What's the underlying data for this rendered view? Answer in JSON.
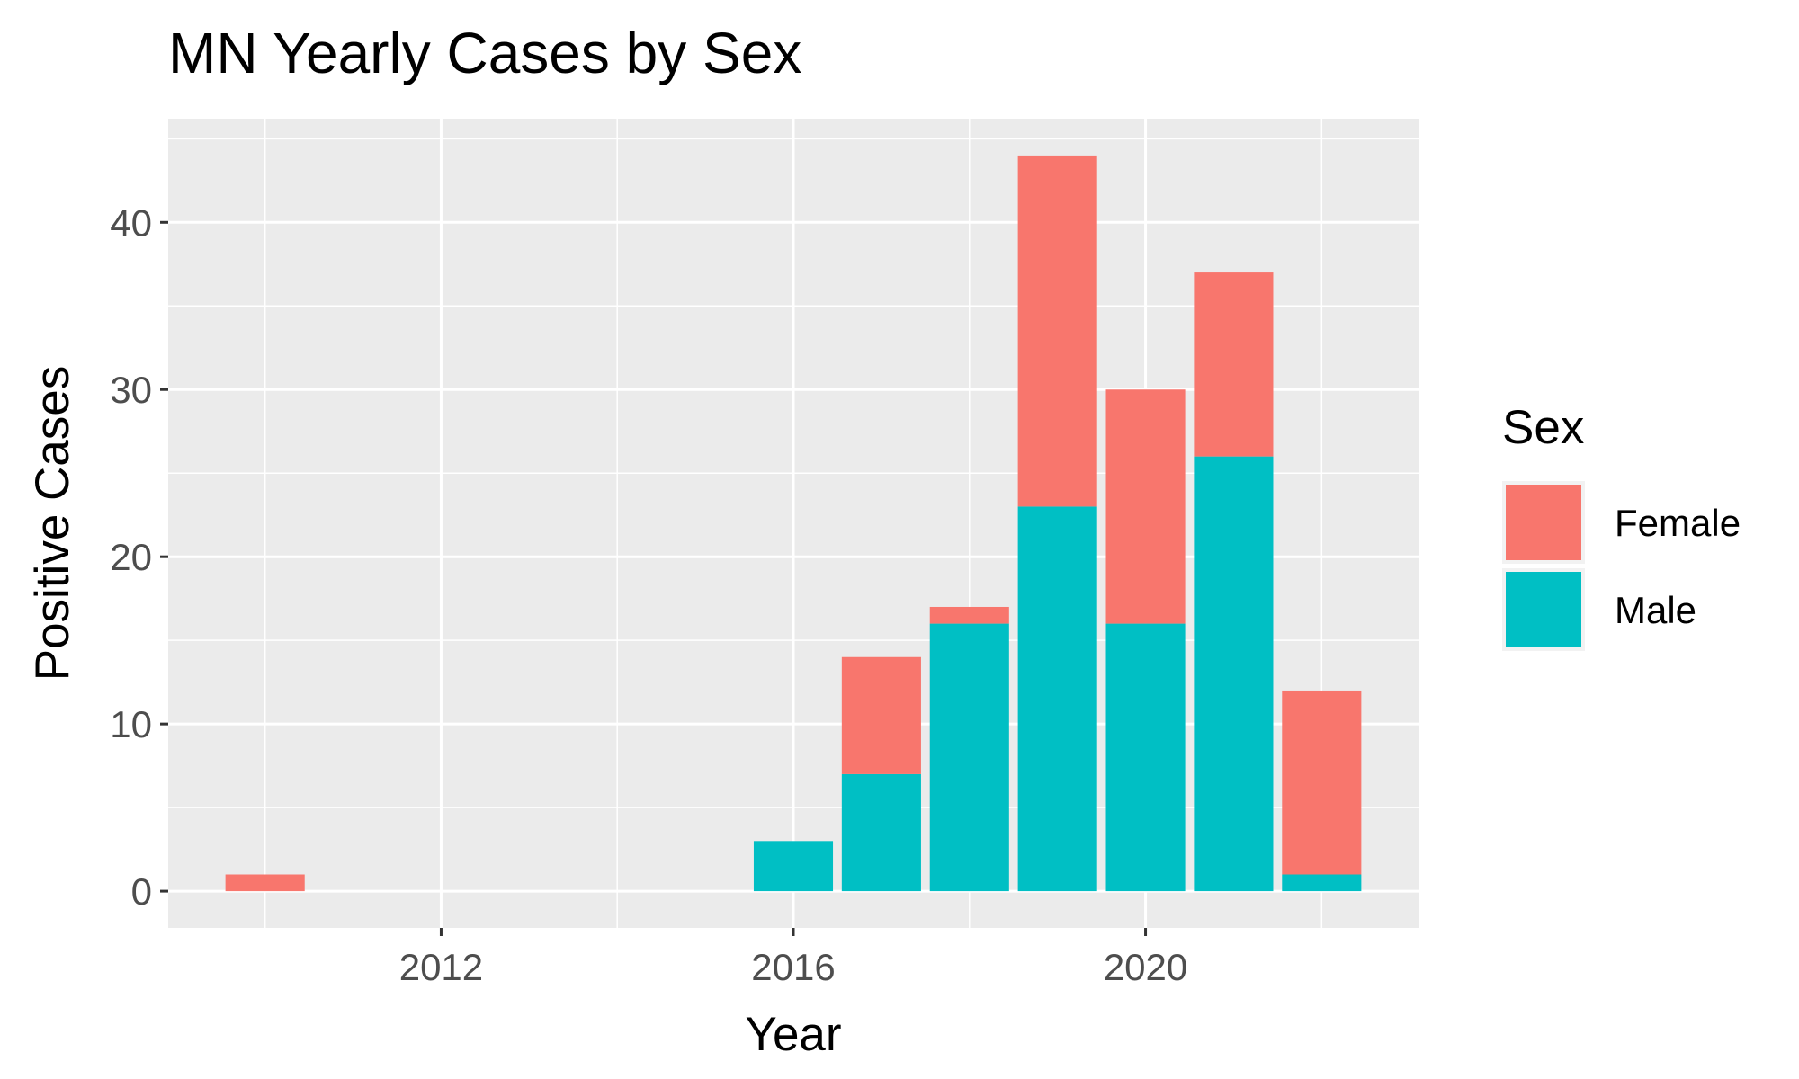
{
  "chart_data": {
    "type": "bar",
    "stacked": true,
    "title": "MN Yearly Cases by Sex",
    "xlabel": "Year",
    "ylabel": "Positive Cases",
    "categories": [
      2010,
      2011,
      2012,
      2013,
      2014,
      2015,
      2016,
      2017,
      2018,
      2019,
      2020,
      2021,
      2022
    ],
    "series": [
      {
        "name": "Male",
        "color": "#00BFC4",
        "values": [
          0,
          0,
          0,
          0,
          0,
          0,
          3,
          7,
          16,
          23,
          16,
          26,
          1
        ]
      },
      {
        "name": "Female",
        "color": "#F8766D",
        "values": [
          1,
          0,
          0,
          0,
          0,
          0,
          0,
          7,
          1,
          21,
          14,
          11,
          11
        ]
      }
    ],
    "xlim": [
      2008.9,
      2023.1
    ],
    "ylim": [
      -2.2,
      46.2
    ],
    "xticks": [
      2012,
      2016,
      2020
    ],
    "yticks": [
      0,
      10,
      20,
      30,
      40
    ],
    "grid": true,
    "legend": {
      "title": "Sex",
      "position": "right",
      "entries": [
        {
          "label": "Female",
          "color": "#F8766D"
        },
        {
          "label": "Male",
          "color": "#00BFC4"
        }
      ]
    },
    "panel_background": "#EBEBEB",
    "grid_color": "#FFFFFF"
  }
}
